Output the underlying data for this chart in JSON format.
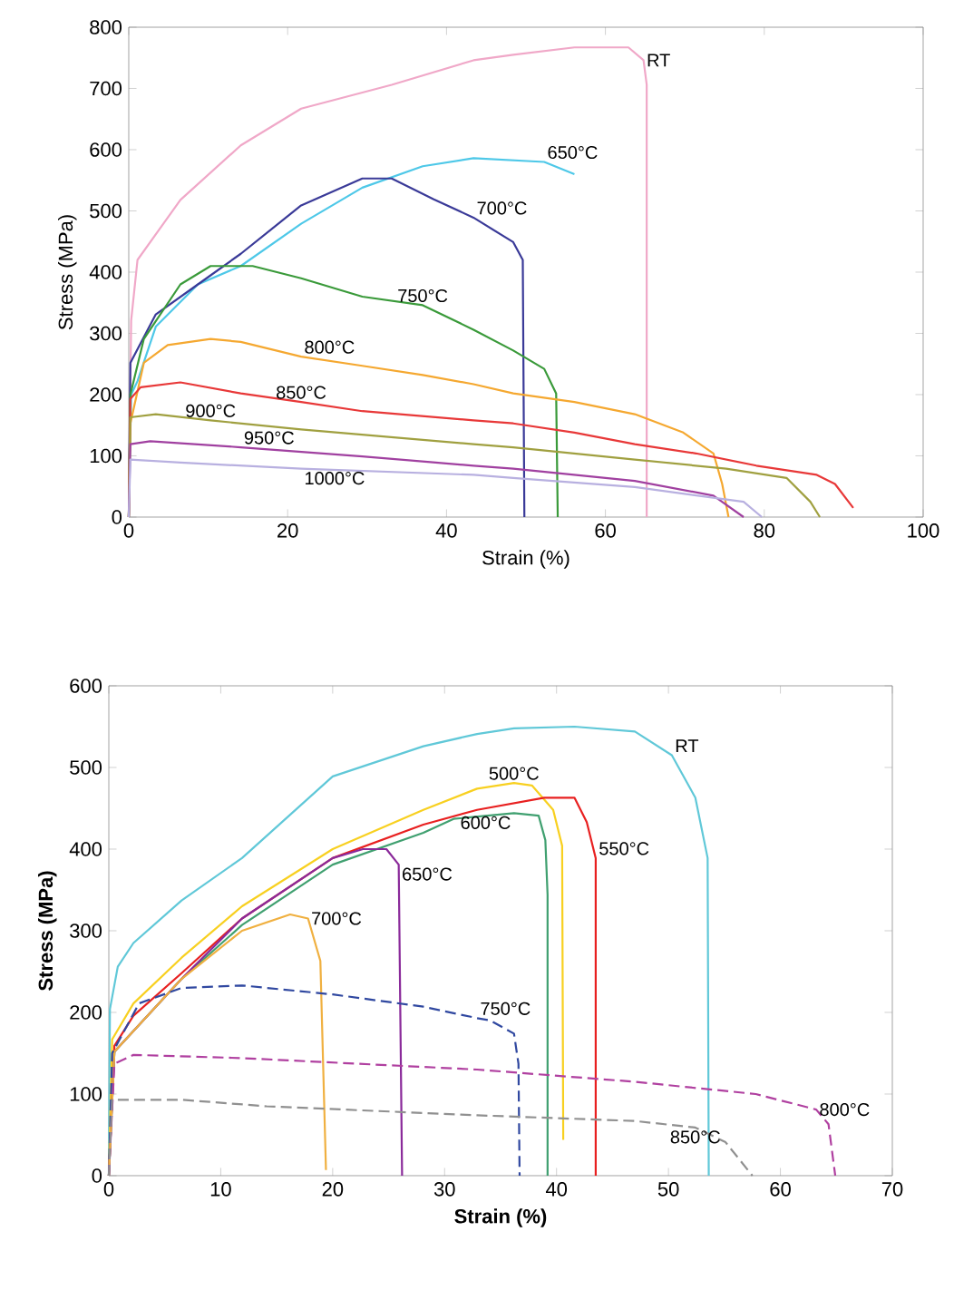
{
  "chart_data": [
    {
      "type": "line",
      "xlabel": "Strain (%)",
      "ylabel": "Stress (MPa)",
      "xlim": [
        0,
        100
      ],
      "ylim": [
        0,
        800
      ],
      "xticks": [
        0,
        20,
        40,
        60,
        80,
        100
      ],
      "yticks": [
        0,
        100,
        200,
        300,
        400,
        500,
        600,
        700,
        800
      ],
      "line_style": "solid",
      "series": [
        {
          "name": "RT",
          "color": "#f0a8c8",
          "x": [
            0,
            0.3,
            1.1,
            6.5,
            14.1,
            21.7,
            33.1,
            43.4,
            48.4,
            56.1,
            62.9,
            64.8,
            65.2,
            65.2
          ],
          "values": [
            0,
            321,
            420,
            518,
            607,
            667,
            706,
            746,
            755,
            767,
            767,
            746,
            706,
            0
          ]
        },
        {
          "name": "650°C",
          "color": "#4ec8e8",
          "x": [
            0,
            0.3,
            1.1,
            3.4,
            8.7,
            14.1,
            21.7,
            29.4,
            37,
            43.4,
            52.3,
            56.1
          ],
          "values": [
            0,
            200,
            222,
            311,
            380,
            410,
            479,
            538,
            573,
            586,
            580,
            560
          ]
        },
        {
          "name": "700°C",
          "color": "#3a3a98",
          "x": [
            0,
            0.2,
            3.4,
            8.7,
            14.1,
            21.7,
            29.4,
            33.1,
            38.4,
            43.4,
            48.4,
            49.6,
            49.8
          ],
          "values": [
            0,
            252,
            331,
            380,
            430,
            509,
            553,
            553,
            519,
            489,
            449,
            420,
            0
          ]
        },
        {
          "name": "750°C",
          "color": "#3a9a3a",
          "x": [
            0,
            0.2,
            1.9,
            6.5,
            10.3,
            15.6,
            21.7,
            29.4,
            37,
            43.4,
            48.4,
            52.3,
            53.8,
            54
          ],
          "values": [
            0,
            200,
            291,
            380,
            410,
            410,
            390,
            360,
            346,
            306,
            272,
            242,
            202,
            0
          ]
        },
        {
          "name": "800°C",
          "color": "#f5a830",
          "x": [
            0,
            0.2,
            1.9,
            4.9,
            10.3,
            14.1,
            21.7,
            29.4,
            37,
            43.4,
            48.4,
            56.1,
            63.7,
            69.8,
            73.6,
            74.7,
            75.5
          ],
          "values": [
            0,
            153,
            252,
            281,
            291,
            286,
            262,
            247,
            232,
            217,
            202,
            188,
            168,
            138,
            104,
            54,
            0
          ]
        },
        {
          "name": "850°C",
          "color": "#e83838",
          "x": [
            0,
            0.2,
            1.5,
            6.5,
            14.1,
            21.7,
            29.4,
            43.4,
            48.4,
            56.1,
            63.7,
            71.4,
            79,
            86.6,
            88.9,
            91.2
          ],
          "values": [
            0,
            193,
            212,
            220,
            202,
            188,
            173,
            158,
            153,
            138,
            119,
            104,
            84,
            69,
            54,
            15
          ]
        },
        {
          "name": "900°C",
          "color": "#a0a040",
          "x": [
            0,
            0.2,
            3.4,
            10.3,
            21.7,
            43.4,
            48.4,
            63.7,
            75.2,
            82.8,
            85.8,
            87
          ],
          "values": [
            0,
            163,
            168,
            158,
            143,
            119,
            114,
            94,
            79,
            64,
            25,
            0
          ]
        },
        {
          "name": "950°C",
          "color": "#a040a0",
          "x": [
            0,
            0.2,
            2.7,
            14.1,
            29.4,
            43.4,
            48.4,
            63.7,
            73.6,
            77.4
          ],
          "values": [
            0,
            119,
            124,
            114,
            99,
            84,
            79,
            59,
            35,
            0
          ]
        },
        {
          "name": "1000°C",
          "color": "#b8b0e0",
          "x": [
            0,
            0.2,
            6.5,
            21.7,
            43.4,
            48.4,
            63.7,
            77.4,
            79.7
          ],
          "values": [
            0,
            94,
            89,
            79,
            69,
            64,
            49,
            25,
            0
          ]
        }
      ]
    },
    {
      "type": "line",
      "xlabel": "Strain (%)",
      "ylabel": "Stress (MPa)",
      "xlim": [
        0,
        70
      ],
      "ylim": [
        0,
        600
      ],
      "xticks": [
        0,
        10,
        20,
        30,
        40,
        50,
        60,
        70
      ],
      "yticks": [
        0,
        100,
        200,
        300,
        400,
        500,
        600
      ],
      "line_style": "solid",
      "series": [
        {
          "name": "RT",
          "color": "#60c8d8",
          "x": [
            0,
            0.1,
            0.8,
            2.2,
            6.5,
            11.9,
            20,
            28.1,
            32.9,
            36.2,
            41.6,
            47,
            50.3,
            52.4,
            53.5,
            53.6
          ],
          "values": [
            0,
            204,
            256,
            285,
            337,
            389,
            489,
            526,
            541,
            548,
            550,
            544,
            515,
            463,
            389,
            0
          ]
        },
        {
          "name": "500°C",
          "color": "#f8d020",
          "x": [
            0,
            0.3,
            2.2,
            6.5,
            11.9,
            20,
            28.1,
            32.9,
            36.2,
            37.8,
            39.7,
            40.5,
            40.6
          ],
          "values": [
            0,
            167,
            211,
            267,
            330,
            400,
            448,
            474,
            481,
            478,
            448,
            404,
            44
          ]
        },
        {
          "name": "550°C",
          "color": "#e82020",
          "x": [
            0,
            0.5,
            2.2,
            6.5,
            11.9,
            20,
            28.1,
            32.9,
            38.9,
            41.6,
            42.7,
            43.5,
            43.5
          ],
          "values": [
            0,
            159,
            196,
            248,
            315,
            389,
            430,
            448,
            463,
            463,
            433,
            389,
            0
          ]
        },
        {
          "name": "600°C",
          "color": "#40a070",
          "x": [
            0,
            0.5,
            6.5,
            11.9,
            20,
            28.1,
            30.8,
            36.2,
            38.4,
            39,
            39.2,
            39.2
          ],
          "values": [
            0,
            152,
            241,
            307,
            381,
            420,
            437,
            444,
            441,
            411,
            344,
            0
          ]
        },
        {
          "name": "650°C",
          "color": "#8a2a9a",
          "x": [
            0,
            0.5,
            6.5,
            11.9,
            20,
            22.7,
            24.8,
            25.9,
            26.2
          ],
          "values": [
            0,
            152,
            241,
            315,
            389,
            400,
            400,
            381,
            0
          ]
        },
        {
          "name": "700°C",
          "color": "#f0b040",
          "x": [
            0,
            0.5,
            6.5,
            11.9,
            16.2,
            17.8,
            18.9,
            19.4
          ],
          "values": [
            0,
            152,
            241,
            300,
            320,
            315,
            263,
            7
          ]
        },
        {
          "name": "750°C",
          "color": "#3048a0",
          "line_style": "dashed",
          "x": [
            0,
            0.3,
            2.7,
            6.5,
            11.9,
            20,
            28.1,
            32.9,
            34.1,
            36.2,
            36.6,
            36.7
          ],
          "values": [
            0,
            150,
            211,
            230,
            233,
            222,
            207,
            193,
            190,
            174,
            137,
            0
          ]
        },
        {
          "name": "800°C",
          "color": "#b040a0",
          "line_style": "dashed",
          "x": [
            0,
            0.5,
            2.2,
            11.9,
            32.9,
            47,
            57.8,
            63.2,
            64.3,
            64.9
          ],
          "values": [
            0,
            137,
            148,
            144,
            130,
            115,
            100,
            81,
            63,
            0
          ]
        },
        {
          "name": "850°C",
          "color": "#909090",
          "line_style": "dashed",
          "x": [
            0,
            0.3,
            6.5,
            14.1,
            32.9,
            47,
            52.4,
            55.1,
            57.5
          ],
          "values": [
            0,
            93,
            93,
            85,
            74,
            67,
            59,
            41,
            0
          ]
        }
      ]
    }
  ]
}
